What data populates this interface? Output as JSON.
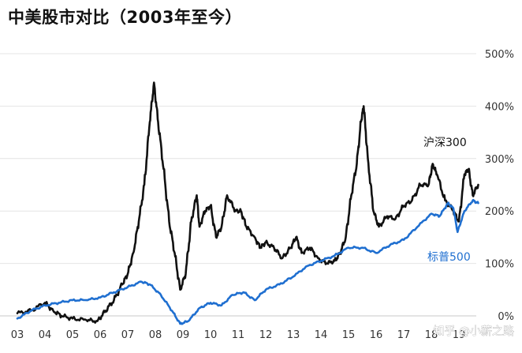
{
  "chart_data": {
    "type": "line",
    "title": "中美股市对比（2003年至今）",
    "xlabel": "",
    "ylabel": "",
    "x_tick_labels": [
      "03",
      "04",
      "05",
      "06",
      "07",
      "08",
      "09",
      "10",
      "11",
      "12",
      "13",
      "14",
      "15",
      "16",
      "17",
      "18",
      "19"
    ],
    "y_tick_labels": [
      "0%",
      "100%",
      "200%",
      "300%",
      "400%",
      "500%"
    ],
    "xlim": [
      2003.0,
      2019.8
    ],
    "ylim": [
      0,
      500
    ],
    "grid": true,
    "series": [
      {
        "name": "沪深300",
        "color": "#111111",
        "x": [
          2003.0,
          2003.5,
          2004.0,
          2004.3,
          2004.6,
          2005.0,
          2005.5,
          2005.9,
          2006.2,
          2006.5,
          2006.8,
          2007.0,
          2007.2,
          2007.4,
          2007.6,
          2007.8,
          2007.95,
          2008.1,
          2008.3,
          2008.5,
          2008.7,
          2008.9,
          2009.1,
          2009.3,
          2009.5,
          2009.6,
          2009.8,
          2010.0,
          2010.2,
          2010.4,
          2010.6,
          2010.9,
          2011.1,
          2011.3,
          2011.6,
          2011.8,
          2012.0,
          2012.3,
          2012.6,
          2012.9,
          2013.1,
          2013.3,
          2013.6,
          2013.9,
          2014.2,
          2014.5,
          2014.7,
          2014.9,
          2015.1,
          2015.3,
          2015.45,
          2015.55,
          2015.7,
          2015.9,
          2016.1,
          2016.4,
          2016.7,
          2017.0,
          2017.3,
          2017.6,
          2017.9,
          2018.05,
          2018.2,
          2018.5,
          2018.8,
          2019.0,
          2019.2,
          2019.35,
          2019.5,
          2019.7
        ],
        "values": [
          5,
          10,
          25,
          10,
          0,
          -5,
          -8,
          -10,
          10,
          30,
          60,
          80,
          120,
          180,
          250,
          370,
          445,
          370,
          280,
          180,
          120,
          50,
          80,
          180,
          230,
          170,
          200,
          210,
          150,
          170,
          230,
          200,
          200,
          170,
          150,
          130,
          140,
          130,
          110,
          130,
          150,
          120,
          130,
          110,
          100,
          105,
          120,
          150,
          230,
          290,
          370,
          400,
          300,
          200,
          170,
          190,
          185,
          210,
          220,
          250,
          250,
          290,
          270,
          220,
          200,
          180,
          270,
          280,
          230,
          250
        ]
      },
      {
        "name": "标普500",
        "color": "#1f6fd0",
        "x": [
          2003.0,
          2003.5,
          2004.0,
          2004.5,
          2005.0,
          2005.5,
          2006.0,
          2006.5,
          2007.0,
          2007.5,
          2007.8,
          2008.2,
          2008.6,
          2008.9,
          2009.2,
          2009.6,
          2010.0,
          2010.4,
          2010.8,
          2011.2,
          2011.6,
          2012.0,
          2012.5,
          2013.0,
          2013.5,
          2014.0,
          2014.5,
          2015.0,
          2015.5,
          2016.0,
          2016.5,
          2017.0,
          2017.5,
          2018.0,
          2018.3,
          2018.6,
          2018.8,
          2018.95,
          2019.2,
          2019.5,
          2019.7
        ],
        "values": [
          -5,
          10,
          20,
          25,
          30,
          30,
          35,
          45,
          55,
          65,
          60,
          40,
          10,
          -15,
          -10,
          15,
          25,
          20,
          40,
          45,
          30,
          50,
          60,
          75,
          95,
          105,
          115,
          130,
          130,
          120,
          135,
          145,
          170,
          195,
          190,
          215,
          205,
          160,
          200,
          220,
          215
        ]
      }
    ],
    "annotations": [
      {
        "text": "沪深300",
        "series": "沪深300"
      },
      {
        "text": "标普500",
        "series": "标普500"
      }
    ],
    "watermark": "知乎 @小薪之路"
  }
}
